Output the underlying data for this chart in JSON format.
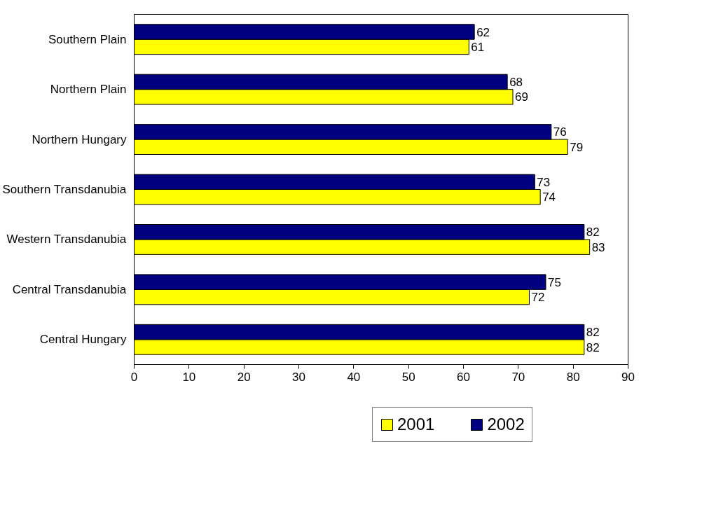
{
  "chart_data": {
    "type": "bar",
    "orientation": "horizontal",
    "categories": [
      "Southern Plain",
      "Northern Plain",
      "Northern Hungary",
      "Southern Transdanubia",
      "Western Transdanubia",
      "Central Transdanubia",
      "Central Hungary"
    ],
    "series": [
      {
        "name": "2001",
        "color": "#ffff00",
        "values": [
          61,
          69,
          79,
          74,
          83,
          72,
          82
        ]
      },
      {
        "name": "2002",
        "color": "#000080",
        "values": [
          62,
          68,
          76,
          73,
          82,
          75,
          82
        ]
      }
    ],
    "xlim": [
      0,
      90
    ],
    "xticks": [
      0,
      10,
      20,
      30,
      40,
      50,
      60,
      70,
      80,
      90
    ],
    "data_labels": true,
    "grid": false,
    "legend": "bottom"
  }
}
